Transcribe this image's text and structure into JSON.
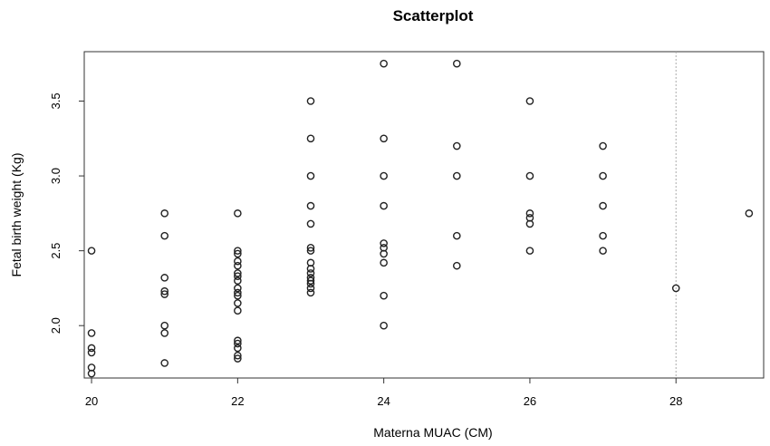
{
  "chart_data": {
    "type": "scatter",
    "title": "Scatterplot",
    "xlabel": "Materna MUAC (CM)",
    "ylabel": "Fetal birth weight (Kg)",
    "xlim": [
      19.9,
      29.2
    ],
    "ylim": [
      1.65,
      3.83
    ],
    "xticks": [
      "20",
      "22",
      "24",
      "26",
      "28"
    ],
    "yticks": [
      "2.0",
      "2.5",
      "3.0",
      "3.5"
    ],
    "grid": false,
    "reference_line_x": 28,
    "points": [
      {
        "x": 20,
        "y": 2.5
      },
      {
        "x": 20,
        "y": 1.95
      },
      {
        "x": 20,
        "y": 1.85
      },
      {
        "x": 20,
        "y": 1.82
      },
      {
        "x": 20,
        "y": 1.72
      },
      {
        "x": 20,
        "y": 1.68
      },
      {
        "x": 21,
        "y": 2.75
      },
      {
        "x": 21,
        "y": 2.6
      },
      {
        "x": 21,
        "y": 2.32
      },
      {
        "x": 21,
        "y": 2.23
      },
      {
        "x": 21,
        "y": 2.21
      },
      {
        "x": 21,
        "y": 2.0
      },
      {
        "x": 21,
        "y": 1.95
      },
      {
        "x": 21,
        "y": 1.75
      },
      {
        "x": 22,
        "y": 2.75
      },
      {
        "x": 22,
        "y": 2.5
      },
      {
        "x": 22,
        "y": 2.48
      },
      {
        "x": 22,
        "y": 2.43
      },
      {
        "x": 22,
        "y": 2.4
      },
      {
        "x": 22,
        "y": 2.35
      },
      {
        "x": 22,
        "y": 2.33
      },
      {
        "x": 22,
        "y": 2.3
      },
      {
        "x": 22,
        "y": 2.25
      },
      {
        "x": 22,
        "y": 2.22
      },
      {
        "x": 22,
        "y": 2.2
      },
      {
        "x": 22,
        "y": 2.15
      },
      {
        "x": 22,
        "y": 2.1
      },
      {
        "x": 22,
        "y": 1.9
      },
      {
        "x": 22,
        "y": 1.88
      },
      {
        "x": 22,
        "y": 1.85
      },
      {
        "x": 22,
        "y": 1.8
      },
      {
        "x": 22,
        "y": 1.78
      },
      {
        "x": 23,
        "y": 3.5
      },
      {
        "x": 23,
        "y": 3.25
      },
      {
        "x": 23,
        "y": 3.0
      },
      {
        "x": 23,
        "y": 2.8
      },
      {
        "x": 23,
        "y": 2.68
      },
      {
        "x": 23,
        "y": 2.52
      },
      {
        "x": 23,
        "y": 2.5
      },
      {
        "x": 23,
        "y": 2.42
      },
      {
        "x": 23,
        "y": 2.38
      },
      {
        "x": 23,
        "y": 2.35
      },
      {
        "x": 23,
        "y": 2.32
      },
      {
        "x": 23,
        "y": 2.3
      },
      {
        "x": 23,
        "y": 2.28
      },
      {
        "x": 23,
        "y": 2.25
      },
      {
        "x": 23,
        "y": 2.22
      },
      {
        "x": 24,
        "y": 3.75
      },
      {
        "x": 24,
        "y": 3.25
      },
      {
        "x": 24,
        "y": 3.0
      },
      {
        "x": 24,
        "y": 2.8
      },
      {
        "x": 24,
        "y": 2.55
      },
      {
        "x": 24,
        "y": 2.52
      },
      {
        "x": 24,
        "y": 2.48
      },
      {
        "x": 24,
        "y": 2.42
      },
      {
        "x": 24,
        "y": 2.2
      },
      {
        "x": 24,
        "y": 2.0
      },
      {
        "x": 25,
        "y": 3.75
      },
      {
        "x": 25,
        "y": 3.2
      },
      {
        "x": 25,
        "y": 3.0
      },
      {
        "x": 25,
        "y": 2.6
      },
      {
        "x": 25,
        "y": 2.4
      },
      {
        "x": 26,
        "y": 3.5
      },
      {
        "x": 26,
        "y": 3.0
      },
      {
        "x": 26,
        "y": 2.75
      },
      {
        "x": 26,
        "y": 2.72
      },
      {
        "x": 26,
        "y": 2.68
      },
      {
        "x": 26,
        "y": 2.5
      },
      {
        "x": 27,
        "y": 3.2
      },
      {
        "x": 27,
        "y": 3.0
      },
      {
        "x": 27,
        "y": 2.8
      },
      {
        "x": 27,
        "y": 2.6
      },
      {
        "x": 27,
        "y": 2.5
      },
      {
        "x": 28,
        "y": 2.25
      },
      {
        "x": 29,
        "y": 2.75
      }
    ]
  }
}
